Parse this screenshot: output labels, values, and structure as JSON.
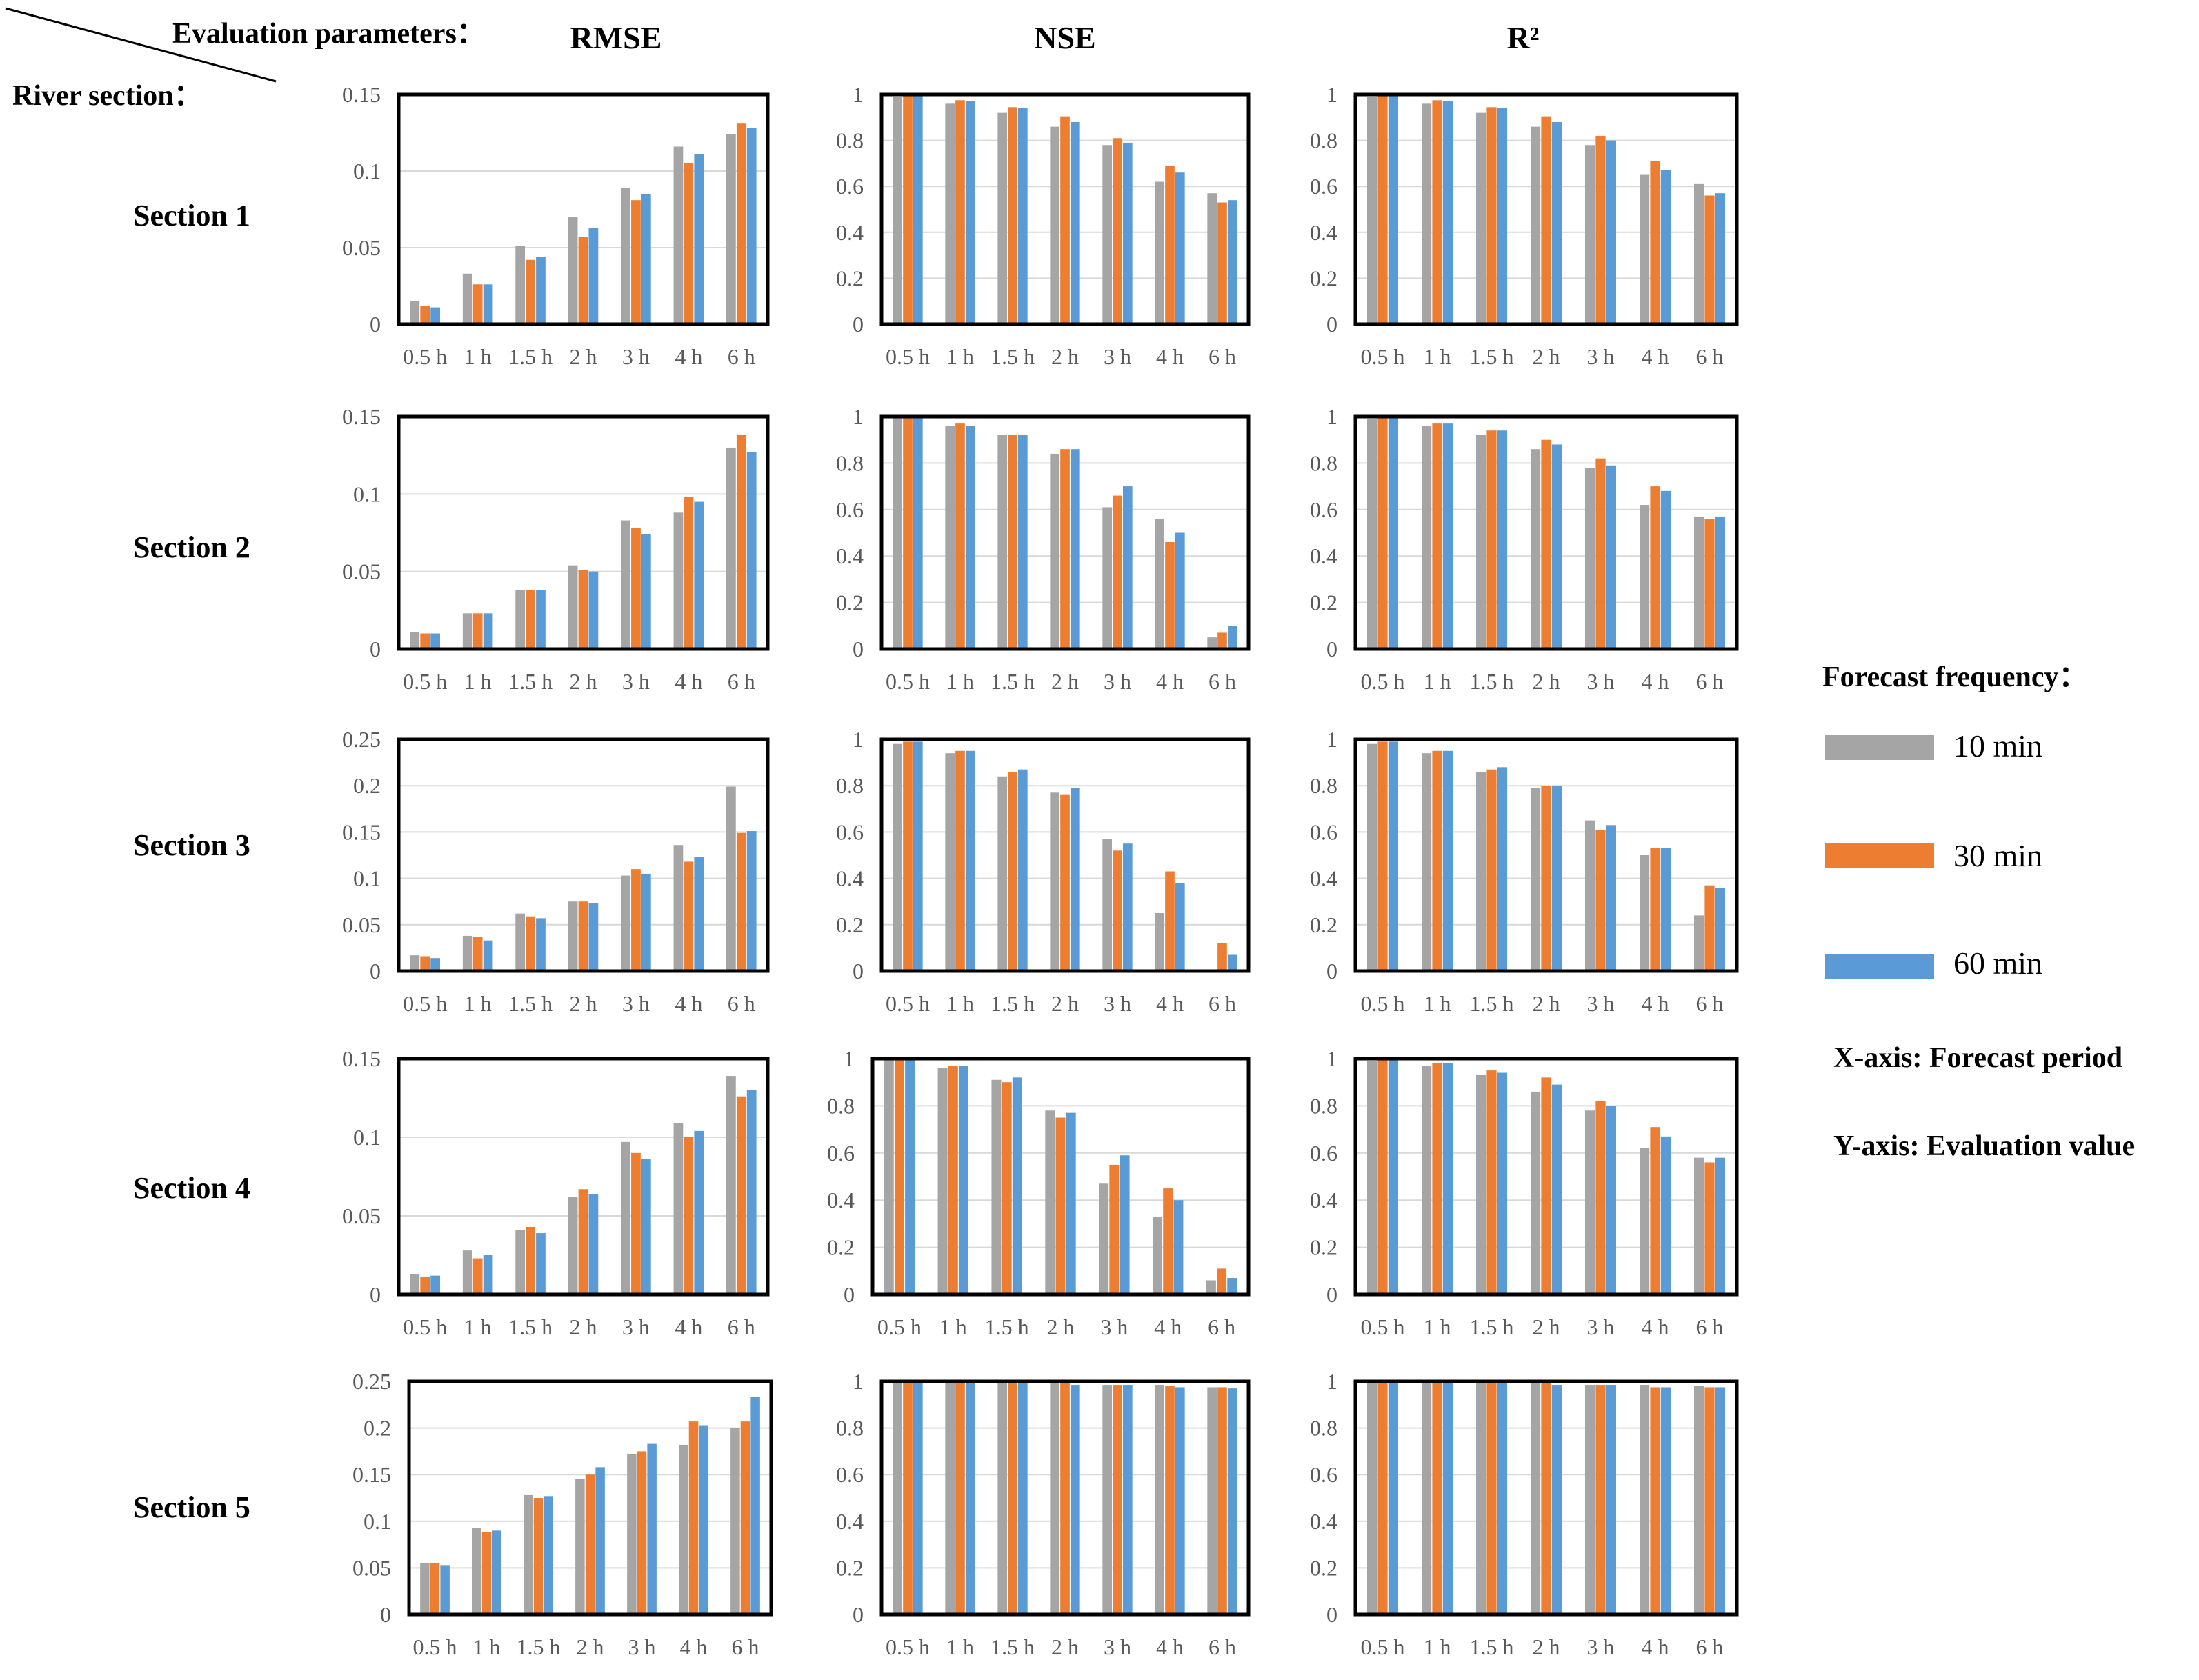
{
  "header": {
    "eval_label": "Evaluation parameters：",
    "river_label": "River section："
  },
  "columns": [
    "RMSE",
    "NSE",
    "R²"
  ],
  "sections": [
    "Section 1",
    "Section 2",
    "Section 3",
    "Section 4",
    "Section 5"
  ],
  "legend": {
    "title": "Forecast frequency：",
    "items": [
      {
        "label": "10 min",
        "color": "#A5A5A5"
      },
      {
        "label": "30 min",
        "color": "#ED7D31"
      },
      {
        "label": "60 min",
        "color": "#5B9BD5"
      }
    ],
    "x_note": "X-axis: Forecast period",
    "y_note": "Y-axis: Evaluation  value"
  },
  "chart_data": [
    {
      "type": "bar",
      "title": "RMSE",
      "section": "Section 1",
      "categories": [
        "0.5 h",
        "1 h",
        "1.5 h",
        "2 h",
        "3 h",
        "4 h",
        "6 h"
      ],
      "ylim": [
        0,
        0.15
      ],
      "yticks": [
        "0",
        "0.05",
        "0.1",
        "0.15"
      ],
      "series": [
        {
          "name": "10 min",
          "values": [
            0.015,
            0.033,
            0.051,
            0.07,
            0.089,
            0.116,
            0.124
          ]
        },
        {
          "name": "30 min",
          "values": [
            0.012,
            0.026,
            0.042,
            0.057,
            0.081,
            0.105,
            0.131
          ]
        },
        {
          "name": "60 min",
          "values": [
            0.011,
            0.026,
            0.044,
            0.063,
            0.085,
            0.111,
            0.128
          ]
        }
      ]
    },
    {
      "type": "bar",
      "title": "NSE",
      "section": "Section 1",
      "categories": [
        "0.5 h",
        "1 h",
        "1.5 h",
        "2 h",
        "3 h",
        "4 h",
        "6 h"
      ],
      "ylim": [
        0,
        1
      ],
      "yticks": [
        "0",
        "0.2",
        "0.4",
        "0.6",
        "0.8",
        "1"
      ],
      "series": [
        {
          "name": "10 min",
          "values": [
            0.99,
            0.96,
            0.92,
            0.86,
            0.78,
            0.62,
            0.57
          ]
        },
        {
          "name": "30 min",
          "values": [
            0.995,
            0.975,
            0.945,
            0.905,
            0.81,
            0.69,
            0.53
          ]
        },
        {
          "name": "60 min",
          "values": [
            0.995,
            0.97,
            0.94,
            0.88,
            0.79,
            0.66,
            0.54
          ]
        }
      ]
    },
    {
      "type": "bar",
      "title": "R²",
      "section": "Section 1",
      "categories": [
        "0.5 h",
        "1 h",
        "1.5 h",
        "2 h",
        "3 h",
        "4 h",
        "6 h"
      ],
      "ylim": [
        0,
        1
      ],
      "yticks": [
        "0",
        "0.2",
        "0.4",
        "0.6",
        "0.8",
        "1"
      ],
      "series": [
        {
          "name": "10 min",
          "values": [
            0.99,
            0.96,
            0.92,
            0.86,
            0.78,
            0.65,
            0.61
          ]
        },
        {
          "name": "30 min",
          "values": [
            0.995,
            0.975,
            0.945,
            0.905,
            0.82,
            0.71,
            0.56
          ]
        },
        {
          "name": "60 min",
          "values": [
            0.995,
            0.97,
            0.94,
            0.88,
            0.8,
            0.67,
            0.57
          ]
        }
      ]
    },
    {
      "type": "bar",
      "title": "RMSE",
      "section": "Section 2",
      "categories": [
        "0.5 h",
        "1 h",
        "1.5 h",
        "2 h",
        "3 h",
        "4 h",
        "6 h"
      ],
      "ylim": [
        0,
        0.15
      ],
      "yticks": [
        "0",
        "0.05",
        "0.1",
        "0.15"
      ],
      "series": [
        {
          "name": "10 min",
          "values": [
            0.011,
            0.023,
            0.038,
            0.054,
            0.083,
            0.088,
            0.13
          ]
        },
        {
          "name": "30 min",
          "values": [
            0.01,
            0.023,
            0.038,
            0.051,
            0.078,
            0.098,
            0.138
          ]
        },
        {
          "name": "60 min",
          "values": [
            0.01,
            0.023,
            0.038,
            0.05,
            0.074,
            0.095,
            0.127
          ]
        }
      ]
    },
    {
      "type": "bar",
      "title": "NSE",
      "section": "Section 2",
      "categories": [
        "0.5 h",
        "1 h",
        "1.5 h",
        "2 h",
        "3 h",
        "4 h",
        "6 h"
      ],
      "ylim": [
        0,
        1
      ],
      "yticks": [
        "0",
        "0.2",
        "0.4",
        "0.6",
        "0.8",
        "1"
      ],
      "series": [
        {
          "name": "10 min",
          "values": [
            0.995,
            0.96,
            0.92,
            0.84,
            0.61,
            0.56,
            0.05
          ]
        },
        {
          "name": "30 min",
          "values": [
            0.995,
            0.97,
            0.92,
            0.86,
            0.66,
            0.46,
            0.07
          ]
        },
        {
          "name": "60 min",
          "values": [
            0.995,
            0.96,
            0.92,
            0.86,
            0.7,
            0.5,
            0.1
          ]
        }
      ]
    },
    {
      "type": "bar",
      "title": "R²",
      "section": "Section 2",
      "categories": [
        "0.5 h",
        "1 h",
        "1.5 h",
        "2 h",
        "3 h",
        "4 h",
        "6 h"
      ],
      "ylim": [
        0,
        1
      ],
      "yticks": [
        "0",
        "0.2",
        "0.4",
        "0.6",
        "0.8",
        "1"
      ],
      "series": [
        {
          "name": "10 min",
          "values": [
            0.99,
            0.96,
            0.92,
            0.86,
            0.78,
            0.62,
            0.57
          ]
        },
        {
          "name": "30 min",
          "values": [
            0.995,
            0.97,
            0.94,
            0.9,
            0.82,
            0.7,
            0.56
          ]
        },
        {
          "name": "60 min",
          "values": [
            0.995,
            0.97,
            0.94,
            0.88,
            0.79,
            0.68,
            0.57
          ]
        }
      ]
    },
    {
      "type": "bar",
      "title": "RMSE",
      "section": "Section 3",
      "categories": [
        "0.5 h",
        "1 h",
        "1.5 h",
        "2 h",
        "3 h",
        "4 h",
        "6 h"
      ],
      "ylim": [
        0,
        0.25
      ],
      "yticks": [
        "0",
        "0.05",
        "0.1",
        "0.15",
        "0.2",
        "0.25"
      ],
      "series": [
        {
          "name": "10 min",
          "values": [
            0.017,
            0.038,
            0.062,
            0.075,
            0.103,
            0.136,
            0.199
          ]
        },
        {
          "name": "30 min",
          "values": [
            0.016,
            0.037,
            0.059,
            0.075,
            0.11,
            0.118,
            0.149
          ]
        },
        {
          "name": "60 min",
          "values": [
            0.014,
            0.033,
            0.057,
            0.073,
            0.105,
            0.123,
            0.151
          ]
        }
      ]
    },
    {
      "type": "bar",
      "title": "NSE",
      "section": "Section 3",
      "categories": [
        "0.5 h",
        "1 h",
        "1.5 h",
        "2 h",
        "3 h",
        "4 h",
        "6 h"
      ],
      "ylim": [
        0,
        1
      ],
      "yticks": [
        "0",
        "0.2",
        "0.4",
        "0.6",
        "0.8",
        "1"
      ],
      "series": [
        {
          "name": "10 min",
          "values": [
            0.98,
            0.94,
            0.84,
            0.77,
            0.57,
            0.25,
            0
          ]
        },
        {
          "name": "30 min",
          "values": [
            0.99,
            0.95,
            0.86,
            0.76,
            0.52,
            0.43,
            0.12
          ]
        },
        {
          "name": "60 min",
          "values": [
            0.99,
            0.95,
            0.87,
            0.79,
            0.55,
            0.38,
            0.07
          ]
        }
      ]
    },
    {
      "type": "bar",
      "title": "R²",
      "section": "Section 3",
      "categories": [
        "0.5 h",
        "1 h",
        "1.5 h",
        "2 h",
        "3 h",
        "4 h",
        "6 h"
      ],
      "ylim": [
        0,
        1
      ],
      "yticks": [
        "0",
        "0.2",
        "0.4",
        "0.6",
        "0.8",
        "1"
      ],
      "series": [
        {
          "name": "10 min",
          "values": [
            0.98,
            0.94,
            0.86,
            0.79,
            0.65,
            0.5,
            0.24
          ]
        },
        {
          "name": "30 min",
          "values": [
            0.99,
            0.95,
            0.87,
            0.8,
            0.61,
            0.53,
            0.37
          ]
        },
        {
          "name": "60 min",
          "values": [
            0.99,
            0.95,
            0.88,
            0.8,
            0.63,
            0.53,
            0.36
          ]
        }
      ]
    },
    {
      "type": "bar",
      "title": "RMSE",
      "section": "Section 4",
      "categories": [
        "0.5 h",
        "1 h",
        "1.5 h",
        "2 h",
        "3 h",
        "4 h",
        "6 h"
      ],
      "ylim": [
        0,
        0.15
      ],
      "yticks": [
        "0",
        "0.05",
        "0.1",
        "0.15"
      ],
      "series": [
        {
          "name": "10 min",
          "values": [
            0.013,
            0.028,
            0.041,
            0.062,
            0.097,
            0.109,
            0.139
          ]
        },
        {
          "name": "30 min",
          "values": [
            0.011,
            0.023,
            0.043,
            0.067,
            0.09,
            0.1,
            0.126
          ]
        },
        {
          "name": "60 min",
          "values": [
            0.012,
            0.025,
            0.039,
            0.064,
            0.086,
            0.104,
            0.13
          ]
        }
      ]
    },
    {
      "type": "bar",
      "title": "NSE",
      "section": "Section 4",
      "categories": [
        "0.5 h",
        "1 h",
        "1.5 h",
        "2 h",
        "3 h",
        "4 h",
        "6 h"
      ],
      "ylim": [
        0,
        1
      ],
      "yticks": [
        "0",
        "0.2",
        "0.4",
        "0.6",
        "0.8",
        "1"
      ],
      "series": [
        {
          "name": "10 min",
          "values": [
            0.995,
            0.96,
            0.91,
            0.78,
            0.47,
            0.33,
            0.06
          ]
        },
        {
          "name": "30 min",
          "values": [
            0.995,
            0.97,
            0.9,
            0.75,
            0.55,
            0.45,
            0.11
          ]
        },
        {
          "name": "60 min",
          "values": [
            0.995,
            0.97,
            0.92,
            0.77,
            0.59,
            0.4,
            0.07
          ]
        }
      ]
    },
    {
      "type": "bar",
      "title": "R²",
      "section": "Section 4",
      "categories": [
        "0.5 h",
        "1 h",
        "1.5 h",
        "2 h",
        "3 h",
        "4 h",
        "6 h"
      ],
      "ylim": [
        0,
        1
      ],
      "yticks": [
        "0",
        "0.2",
        "0.4",
        "0.6",
        "0.8",
        "1"
      ],
      "series": [
        {
          "name": "10 min",
          "values": [
            0.99,
            0.97,
            0.93,
            0.86,
            0.78,
            0.62,
            0.58
          ]
        },
        {
          "name": "30 min",
          "values": [
            0.995,
            0.98,
            0.95,
            0.92,
            0.82,
            0.71,
            0.56
          ]
        },
        {
          "name": "60 min",
          "values": [
            0.995,
            0.98,
            0.94,
            0.89,
            0.8,
            0.67,
            0.58
          ]
        }
      ]
    },
    {
      "type": "bar",
      "title": "RMSE",
      "section": "Section 5",
      "categories": [
        "0.5 h",
        "1 h",
        "1.5 h",
        "2 h",
        "3 h",
        "4 h",
        "6 h"
      ],
      "ylim": [
        0,
        0.25
      ],
      "yticks": [
        "0",
        "0.05",
        "0.1",
        "0.15",
        "0.2",
        "0.25"
      ],
      "series": [
        {
          "name": "10 min",
          "values": [
            0.055,
            0.093,
            0.128,
            0.145,
            0.172,
            0.182,
            0.2
          ]
        },
        {
          "name": "30 min",
          "values": [
            0.055,
            0.088,
            0.125,
            0.15,
            0.175,
            0.207,
            0.207
          ]
        },
        {
          "name": "60 min",
          "values": [
            0.053,
            0.09,
            0.127,
            0.158,
            0.183,
            0.203,
            0.233
          ]
        }
      ]
    },
    {
      "type": "bar",
      "title": "NSE",
      "section": "Section 5",
      "categories": [
        "0.5 h",
        "1 h",
        "1.5 h",
        "2 h",
        "3 h",
        "4 h",
        "6 h"
      ],
      "ylim": [
        0,
        1
      ],
      "yticks": [
        "0",
        "0.2",
        "0.4",
        "0.6",
        "0.8",
        "1"
      ],
      "series": [
        {
          "name": "10 min",
          "values": [
            0.995,
            0.995,
            0.995,
            0.995,
            0.985,
            0.985,
            0.975
          ]
        },
        {
          "name": "30 min",
          "values": [
            0.995,
            0.995,
            0.995,
            0.995,
            0.985,
            0.98,
            0.975
          ]
        },
        {
          "name": "60 min",
          "values": [
            0.995,
            0.995,
            0.995,
            0.985,
            0.985,
            0.975,
            0.97
          ]
        }
      ]
    },
    {
      "type": "bar",
      "title": "R²",
      "section": "Section 5",
      "categories": [
        "0.5 h",
        "1 h",
        "1.5 h",
        "2 h",
        "3 h",
        "4 h",
        "6 h"
      ],
      "ylim": [
        0,
        1
      ],
      "yticks": [
        "0",
        "0.2",
        "0.4",
        "0.6",
        "0.8",
        "1"
      ],
      "series": [
        {
          "name": "10 min",
          "values": [
            0.995,
            0.995,
            0.995,
            0.995,
            0.985,
            0.985,
            0.98
          ]
        },
        {
          "name": "30 min",
          "values": [
            0.995,
            0.995,
            0.995,
            0.995,
            0.985,
            0.975,
            0.975
          ]
        },
        {
          "name": "60 min",
          "values": [
            0.995,
            0.995,
            0.995,
            0.985,
            0.985,
            0.975,
            0.975
          ]
        }
      ]
    }
  ]
}
